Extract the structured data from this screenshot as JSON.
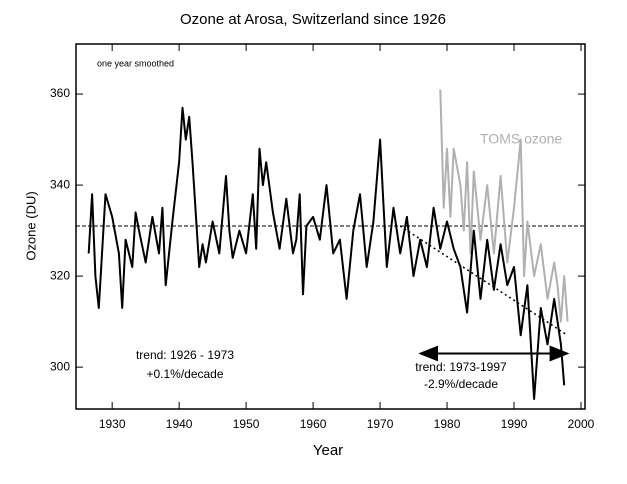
{
  "chart_data": {
    "type": "line",
    "title": "Ozone at Arosa, Switzerland since 1926",
    "x_label": "Year",
    "y_label": "Ozone (DU)",
    "xlim": [
      1924.6,
      2000.6
    ],
    "ylim": [
      290.8,
      371
    ],
    "xticks": [
      1930,
      1940,
      1950,
      1960,
      1970,
      1980,
      1990,
      2000
    ],
    "yticks": [
      300,
      320,
      340,
      360
    ],
    "series": [
      {
        "color": "#000000",
        "x": [
          1926.5,
          1927,
          1927.5,
          1928,
          1929,
          1930,
          1931,
          1931.5,
          1932,
          1933,
          1933.5,
          1934,
          1935,
          1936,
          1937,
          1937.5,
          1938,
          1939,
          1940,
          1940.5,
          1941,
          1941.5,
          1942,
          1943,
          1943.5,
          1944,
          1945,
          1946,
          1947,
          1947.5,
          1948,
          1949,
          1950,
          1951,
          1951.5,
          1952,
          1952.5,
          1953,
          1954,
          1955,
          1956,
          1957,
          1957.5,
          1958,
          1958.5,
          1959,
          1960,
          1961,
          1962,
          1963,
          1964,
          1965,
          1966,
          1967,
          1968,
          1969,
          1970,
          1970.5,
          1971,
          1972,
          1973,
          1974,
          1975,
          1976,
          1977,
          1978,
          1979,
          1980,
          1981,
          1982,
          1983,
          1984,
          1985,
          1986,
          1987,
          1988,
          1989,
          1990,
          1991,
          1992,
          1993,
          1994,
          1995,
          1996,
          1997,
          1997.5
        ],
        "values": [
          325,
          338,
          320,
          313,
          338,
          333,
          325,
          313,
          328,
          322,
          334,
          330,
          323,
          333,
          325,
          335,
          318,
          332,
          345,
          357,
          350,
          355,
          345,
          322,
          327,
          323,
          332,
          325,
          342,
          330,
          324,
          330,
          325,
          338,
          326,
          348,
          340,
          345,
          334,
          326,
          337,
          325,
          328,
          338,
          316,
          331,
          333,
          328,
          340,
          325,
          328,
          315,
          330,
          338,
          322,
          332,
          350,
          336,
          322,
          335,
          325,
          333,
          320,
          328,
          322,
          335,
          326,
          332,
          326,
          322,
          312,
          330,
          315,
          328,
          317,
          327,
          318,
          322,
          307,
          318,
          293,
          313,
          305,
          315,
          305,
          296
        ]
      },
      {
        "name": "TOMS ozone",
        "color": "#b0b0b0",
        "x": [
          1979,
          1979.5,
          1980,
          1980.5,
          1981,
          1982,
          1982.5,
          1983,
          1983.5,
          1984,
          1985,
          1986,
          1987,
          1988,
          1989,
          1990,
          1991,
          1991.5,
          1992,
          1993,
          1994,
          1995,
          1996,
          1996.5,
          1997,
          1997.5,
          1998
        ],
        "values": [
          361,
          335,
          348,
          333,
          348,
          340,
          330,
          345,
          325,
          343,
          328,
          340,
          325,
          342,
          323,
          335,
          350,
          320,
          332,
          320,
          327,
          315,
          323,
          318,
          310,
          320,
          310
        ]
      }
    ],
    "reference_line": 331,
    "trend_line": {
      "x": [
        1973,
        1998
      ],
      "values": [
        331,
        307
      ]
    },
    "arrow": {
      "x": [
        1976,
        1998
      ],
      "value": 303
    },
    "annotations": [
      "one year smoothed",
      "trend: 1926 - 1973",
      "+0.1%/decade",
      "trend: 1973-1997",
      "-2.9%/decade"
    ]
  }
}
